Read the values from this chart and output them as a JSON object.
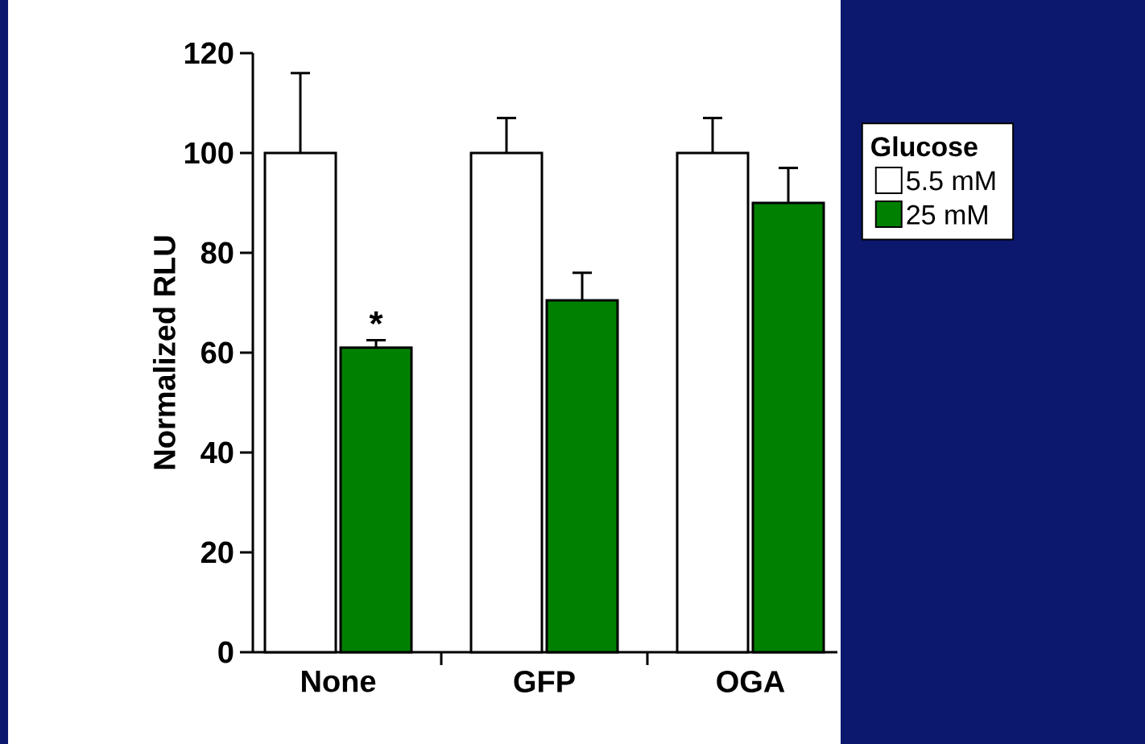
{
  "chart_data": {
    "type": "bar",
    "ylabel": "Normalized RLU",
    "legend_title": "Glucose",
    "categories": [
      "None",
      "GFP",
      "OGA"
    ],
    "series": [
      {
        "name": "5.5 mM",
        "color": "#ffffff",
        "values": [
          100,
          100,
          100
        ],
        "errors": [
          16,
          7,
          7
        ]
      },
      {
        "name": "25 mM",
        "color": "#008000",
        "values": [
          61,
          70.5,
          90
        ],
        "errors": [
          1.5,
          5.5,
          7
        ]
      }
    ],
    "ylim": [
      0,
      120
    ],
    "yticks": [
      0,
      20,
      40,
      60,
      80,
      100,
      120
    ],
    "legend": "right",
    "grid": false,
    "annotations": [
      {
        "text": "*",
        "x": "None",
        "y": 63
      }
    ]
  }
}
